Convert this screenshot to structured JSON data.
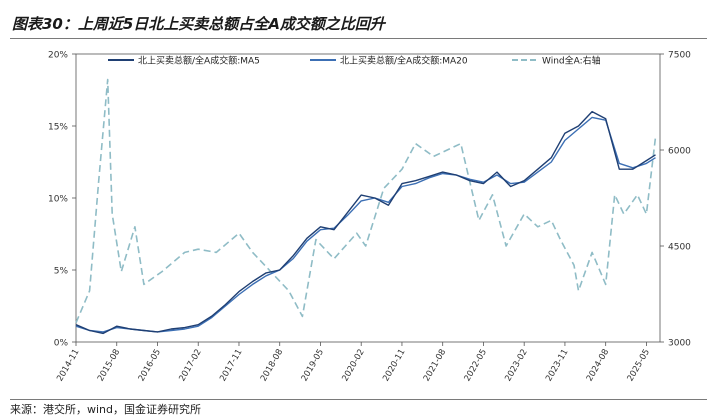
{
  "header": {
    "title": "图表30：上周近5日北上买卖总额占全A成交额之比回升"
  },
  "footer": {
    "source": "来源：港交所，wind，国金证券研究所"
  },
  "chart_data": {
    "type": "line",
    "legend_position": "top",
    "grid": false,
    "x_ticks": [
      "2014-11",
      "2015-08",
      "2016-05",
      "2017-02",
      "2017-11",
      "2018-08",
      "2019-05",
      "2020-02",
      "2020-11",
      "2021-08",
      "2022-05",
      "2023-02",
      "2023-11",
      "2024-08",
      "2025-05"
    ],
    "y_left": {
      "ylim": [
        0,
        20
      ],
      "ticks": [
        "0%",
        "5%",
        "10%",
        "15%",
        "20%"
      ]
    },
    "y_right": {
      "ylim": [
        3000,
        7500
      ],
      "ticks": [
        "3000",
        "4500",
        "6000",
        "7500"
      ]
    },
    "series": [
      {
        "name": "北上买卖总额/全A成交额:MA5",
        "axis": "left",
        "color": "#1f3f73",
        "dash": "solid",
        "x": [
          "2014-11",
          "2015-02",
          "2015-05",
          "2015-08",
          "2015-11",
          "2016-02",
          "2016-05",
          "2016-08",
          "2016-11",
          "2017-02",
          "2017-05",
          "2017-08",
          "2017-11",
          "2018-02",
          "2018-05",
          "2018-08",
          "2018-11",
          "2019-02",
          "2019-05",
          "2019-08",
          "2019-11",
          "2020-02",
          "2020-05",
          "2020-08",
          "2020-11",
          "2021-02",
          "2021-05",
          "2021-08",
          "2021-11",
          "2022-02",
          "2022-05",
          "2022-08",
          "2022-11",
          "2023-02",
          "2023-05",
          "2023-08",
          "2023-11",
          "2024-02",
          "2024-05",
          "2024-08",
          "2024-11",
          "2025-02",
          "2025-05",
          "2025-07"
        ],
        "y": [
          1.2,
          0.8,
          0.6,
          1.1,
          0.9,
          0.8,
          0.7,
          0.9,
          1.0,
          1.2,
          1.8,
          2.6,
          3.5,
          4.2,
          4.8,
          5.0,
          6.0,
          7.2,
          8.0,
          7.8,
          9.0,
          10.2,
          10.0,
          9.5,
          11.0,
          11.2,
          11.5,
          11.8,
          11.6,
          11.2,
          11.0,
          11.8,
          10.8,
          11.2,
          12.0,
          12.8,
          14.5,
          15.0,
          16.0,
          15.5,
          12.0,
          12.0,
          12.6,
          13.0
        ]
      },
      {
        "name": "北上买卖总额/全A成交额:MA20",
        "axis": "left",
        "color": "#3c6fb4",
        "dash": "solid",
        "x": [
          "2014-11",
          "2015-02",
          "2015-05",
          "2015-08",
          "2015-11",
          "2016-02",
          "2016-05",
          "2016-08",
          "2016-11",
          "2017-02",
          "2017-05",
          "2017-08",
          "2017-11",
          "2018-02",
          "2018-05",
          "2018-08",
          "2018-11",
          "2019-02",
          "2019-05",
          "2019-08",
          "2019-11",
          "2020-02",
          "2020-05",
          "2020-08",
          "2020-11",
          "2021-02",
          "2021-05",
          "2021-08",
          "2021-11",
          "2022-02",
          "2022-05",
          "2022-08",
          "2022-11",
          "2023-02",
          "2023-05",
          "2023-08",
          "2023-11",
          "2024-02",
          "2024-05",
          "2024-08",
          "2024-11",
          "2025-02",
          "2025-05",
          "2025-07"
        ],
        "y": [
          1.1,
          0.8,
          0.7,
          1.0,
          0.9,
          0.8,
          0.7,
          0.8,
          0.9,
          1.1,
          1.7,
          2.5,
          3.3,
          4.0,
          4.6,
          5.0,
          5.8,
          7.0,
          7.8,
          7.9,
          8.8,
          9.8,
          10.0,
          9.7,
          10.8,
          11.0,
          11.4,
          11.7,
          11.6,
          11.3,
          11.1,
          11.6,
          11.0,
          11.1,
          11.8,
          12.5,
          14.0,
          14.8,
          15.6,
          15.4,
          12.4,
          12.1,
          12.4,
          12.8
        ]
      },
      {
        "name": "Wind全A:右轴",
        "axis": "right",
        "color": "#8fbcc6",
        "dash": "dashed",
        "x": [
          "2014-11",
          "2015-02",
          "2015-04",
          "2015-06",
          "2015-07",
          "2015-09",
          "2015-12",
          "2016-02",
          "2016-06",
          "2016-11",
          "2017-02",
          "2017-06",
          "2017-11",
          "2018-02",
          "2018-06",
          "2018-10",
          "2019-01",
          "2019-04",
          "2019-08",
          "2020-01",
          "2020-03",
          "2020-07",
          "2020-11",
          "2021-02",
          "2021-06",
          "2021-09",
          "2021-12",
          "2022-04",
          "2022-07",
          "2022-10",
          "2023-02",
          "2023-05",
          "2023-08",
          "2023-10",
          "2024-01",
          "2024-02",
          "2024-05",
          "2024-08",
          "2024-10",
          "2024-12",
          "2025-03",
          "2025-05",
          "2025-07"
        ],
        "y": [
          3300,
          3800,
          5500,
          7100,
          5000,
          4100,
          4800,
          3900,
          4100,
          4400,
          4450,
          4400,
          4700,
          4400,
          4100,
          3800,
          3400,
          4600,
          4300,
          4700,
          4500,
          5400,
          5700,
          6100,
          5900,
          6000,
          6100,
          4900,
          5300,
          4500,
          5000,
          4800,
          4900,
          4600,
          4200,
          3800,
          4400,
          3900,
          5300,
          5000,
          5300,
          5000,
          6200
        ]
      }
    ]
  }
}
